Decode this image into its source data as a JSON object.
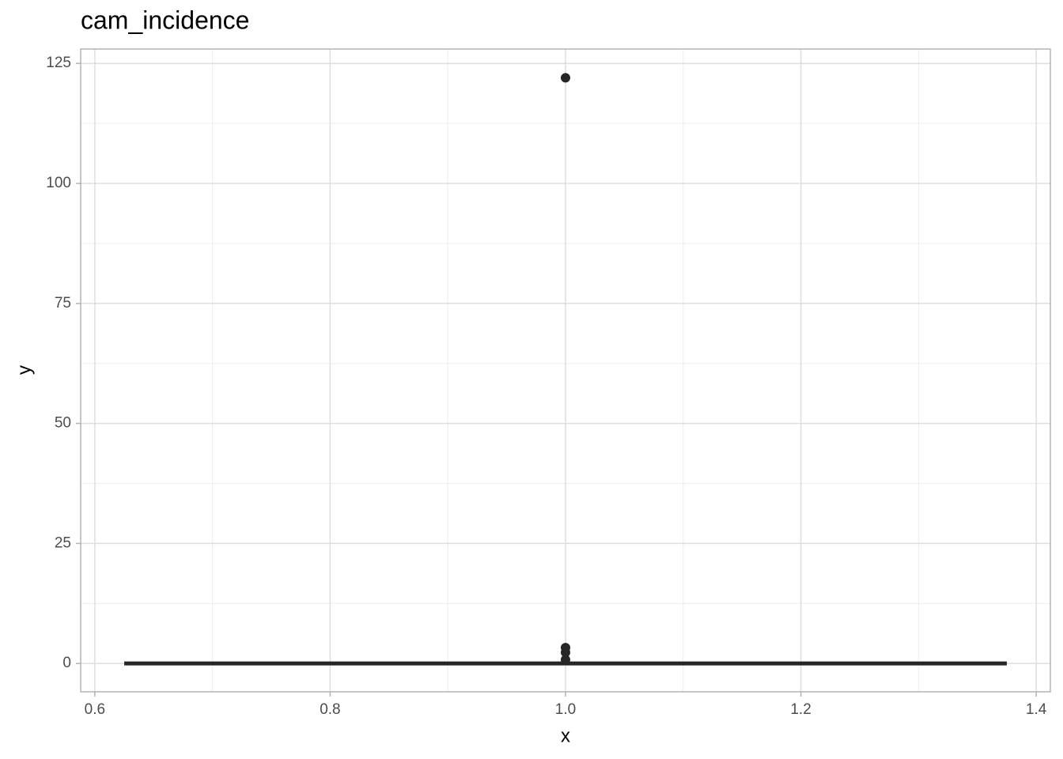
{
  "chart_data": {
    "type": "boxplot",
    "title": "cam_incidence",
    "x_label": "x",
    "y_label": "y",
    "x": 1,
    "width": 0.75,
    "color": "#262626",
    "min": 0,
    "q1": 0,
    "median": 0,
    "q3": 0,
    "max": 0,
    "outliers": [
      0.8,
      2.3,
      3.3,
      122
    ],
    "xlim": [
      0.588,
      1.412
    ],
    "xticks": [
      0.6,
      0.8,
      {
        "value": 1,
        "label": "1.0"
      },
      1.2,
      1.4
    ],
    "ylim": [
      -5.9,
      128
    ],
    "yticks": [
      0,
      25,
      50,
      75,
      100,
      125
    ],
    "grid": true
  }
}
